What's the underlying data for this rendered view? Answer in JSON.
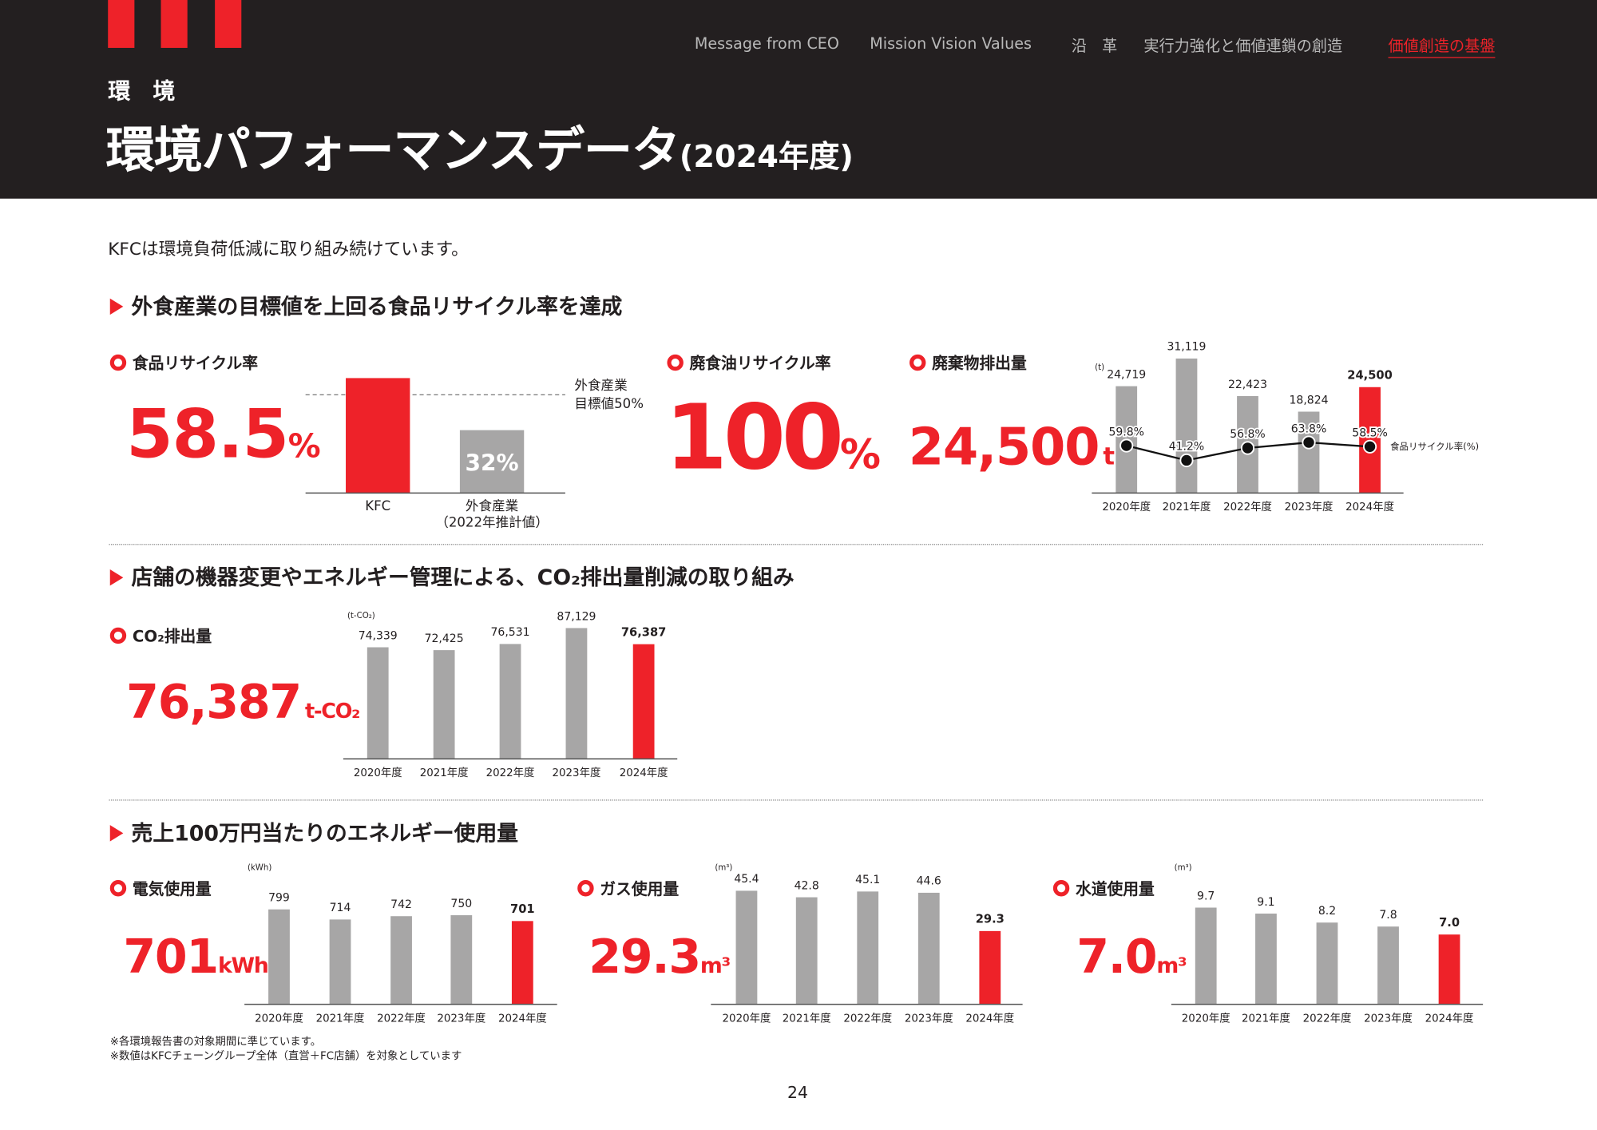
{
  "header": {
    "section_label": "環　境",
    "title": "環境パフォーマンスデータ",
    "title_suffix": "(2024年度)",
    "nav": [
      {
        "label": "Message from CEO",
        "active": false
      },
      {
        "label": "Mission Vision Values",
        "active": false
      },
      {
        "label": "沿　革",
        "active": false
      },
      {
        "label": "実行力強化と価値連鎖の創造",
        "active": false
      },
      {
        "label": "価値創造の基盤",
        "active": true
      }
    ]
  },
  "colors": {
    "accent": "#ee2229",
    "header_bg": "#231f20",
    "bar_gray": "#a7a6a6"
  },
  "intro": "KFCは環境負荷低減に取り組み続けています。",
  "sections": [
    {
      "title": "外食産業の目標値を上回る食品リサイクル率を達成"
    },
    {
      "title": "店舗の機器変更やエネルギー管理による、CO₂排出量削減の取り組み"
    },
    {
      "title": "売上100万円当たりのエネルギー使用量"
    }
  ],
  "kpis": {
    "food_recycle": {
      "label": "食品リサイクル率",
      "value": "58.5",
      "unit": "%"
    },
    "oil_recycle": {
      "label": "廃食油リサイクル率",
      "value": "100",
      "unit": "%"
    },
    "waste": {
      "label": "廃棄物排出量",
      "value": "24,500",
      "unit": "t"
    },
    "co2": {
      "label": "CO₂排出量",
      "value": "76,387",
      "unit": "t-CO₂"
    },
    "electricity": {
      "label": "電気使用量",
      "value": "701",
      "unit": "kWh"
    },
    "gas": {
      "label": "ガス使用量",
      "value": "29.3",
      "unit": "m³"
    },
    "water": {
      "label": "水道使用量",
      "value": "7.0",
      "unit": "m³"
    }
  },
  "chart_data": [
    {
      "id": "food",
      "type": "bar",
      "categories": [
        "KFC",
        "外食産業"
      ],
      "category_sublabels": [
        "",
        "（2022年推計値）"
      ],
      "values": [
        58.5,
        32
      ],
      "data_labels": [
        "",
        "32%"
      ],
      "highlight": [
        true,
        false
      ],
      "ylim": [
        0,
        70
      ],
      "reference_line": {
        "value": 50,
        "label_lines": [
          "外食産業",
          "目標値50%"
        ]
      }
    },
    {
      "id": "waste",
      "type": "bar",
      "unit": "(t)",
      "categories": [
        "2020年度",
        "2021年度",
        "2022年度",
        "2023年度",
        "2024年度"
      ],
      "values": [
        24719,
        31119,
        22423,
        18824,
        24500
      ],
      "data_labels": [
        "24,719",
        "31,119",
        "22,423",
        "18,824",
        "24,500"
      ],
      "highlight": [
        false,
        false,
        false,
        false,
        true
      ],
      "ylim": [
        0,
        33000
      ],
      "line_series": {
        "name": "食品リサイクル率(%)",
        "values": [
          59.8,
          41.2,
          56.8,
          63.8,
          58.5
        ],
        "labels": [
          "59.8%",
          "41.2%",
          "56.8%",
          "63.8%",
          "58.5%"
        ],
        "ylim": [
          0,
          180
        ]
      }
    },
    {
      "id": "co2",
      "type": "bar",
      "unit": "(t-CO₂)",
      "categories": [
        "2020年度",
        "2021年度",
        "2022年度",
        "2023年度",
        "2024年度"
      ],
      "values": [
        74339,
        72425,
        76531,
        87129,
        76387
      ],
      "data_labels": [
        "74,339",
        "72,425",
        "76,531",
        "87,129",
        "76,387"
      ],
      "highlight": [
        false,
        false,
        false,
        false,
        true
      ],
      "ylim": [
        0,
        95000
      ]
    },
    {
      "id": "electricity",
      "type": "bar",
      "unit": "(kWh)",
      "categories": [
        "2020年度",
        "2021年度",
        "2022年度",
        "2023年度",
        "2024年度"
      ],
      "values": [
        799,
        714,
        742,
        750,
        701
      ],
      "data_labels": [
        "799",
        "714",
        "742",
        "750",
        "701"
      ],
      "highlight": [
        false,
        false,
        false,
        false,
        true
      ],
      "ylim": [
        0,
        1200
      ]
    },
    {
      "id": "gas",
      "type": "bar",
      "unit": "(m³)",
      "categories": [
        "2020年度",
        "2021年度",
        "2022年度",
        "2023年度",
        "2024年度"
      ],
      "values": [
        45.4,
        42.8,
        45.1,
        44.6,
        29.3
      ],
      "data_labels": [
        "45.4",
        "42.8",
        "45.1",
        "44.6",
        "29.3"
      ],
      "highlight": [
        false,
        false,
        false,
        false,
        true
      ],
      "ylim": [
        0,
        57
      ]
    },
    {
      "id": "water",
      "type": "bar",
      "unit": "(m³)",
      "categories": [
        "2020年度",
        "2021年度",
        "2022年度",
        "2023年度",
        "2024年度"
      ],
      "values": [
        9.7,
        9.1,
        8.2,
        7.8,
        7.0
      ],
      "data_labels": [
        "9.7",
        "9.1",
        "8.2",
        "7.8",
        "7.0"
      ],
      "highlight": [
        false,
        false,
        false,
        false,
        true
      ],
      "ylim": [
        0,
        14.3
      ]
    }
  ],
  "footnotes": [
    "※各環境報告書の対象期間に準じています。",
    "※数値はKFCチェーングループ全体（直営＋FC店舗）を対象としています"
  ],
  "page_number": "24"
}
